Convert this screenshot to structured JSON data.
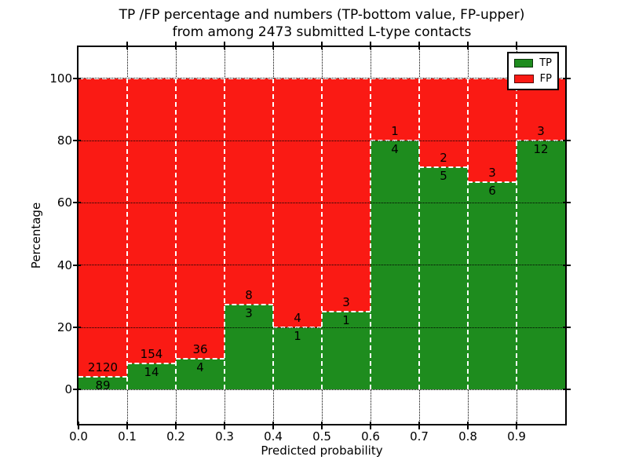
{
  "title": {
    "line1": "TP /FP percentage and numbers (TP-bottom value, FP-upper)",
    "line2": "from among 2473 submitted L-type contacts"
  },
  "axes": {
    "xlabel": "Predicted probability",
    "ylabel": "Percentage"
  },
  "legend": {
    "items": [
      {
        "label": "TP",
        "color": "#1e8c1e"
      },
      {
        "label": "FP",
        "color": "#fa1a14"
      }
    ]
  },
  "chart_data": {
    "type": "bar",
    "variant": "stacked-percentage",
    "title": "TP /FP percentage and numbers (TP-bottom value, FP-upper) from among 2473 submitted L-type contacts",
    "xlabel": "Predicted probability",
    "ylabel": "Percentage",
    "xlim": [
      0.0,
      1.0
    ],
    "ylim": [
      -11,
      110
    ],
    "bin_width": 0.1,
    "xticks": [
      "0.0",
      "0.1",
      "0.2",
      "0.3",
      "0.4",
      "0.5",
      "0.6",
      "0.7",
      "0.8",
      "0.9"
    ],
    "yticks": [
      0,
      20,
      40,
      60,
      80,
      100
    ],
    "grid": true,
    "legend_position": "upper right",
    "total_contacts": 2473,
    "categories": [
      "0.0-0.1",
      "0.1-0.2",
      "0.2-0.3",
      "0.3-0.4",
      "0.4-0.5",
      "0.5-0.6",
      "0.6-0.7",
      "0.7-0.8",
      "0.8-0.9",
      "0.9-1.0"
    ],
    "series": [
      {
        "name": "TP",
        "color": "#1e8c1e",
        "values": [
          89,
          14,
          4,
          3,
          1,
          1,
          4,
          5,
          6,
          12
        ]
      },
      {
        "name": "FP",
        "color": "#fa1a14",
        "values": [
          2120,
          154,
          36,
          8,
          4,
          3,
          1,
          2,
          3,
          3
        ]
      }
    ],
    "colors": {
      "tp": "#1e8c1e",
      "fp": "#fa1a14",
      "grid": "#000000",
      "bar_edge": "#ffffff"
    }
  }
}
